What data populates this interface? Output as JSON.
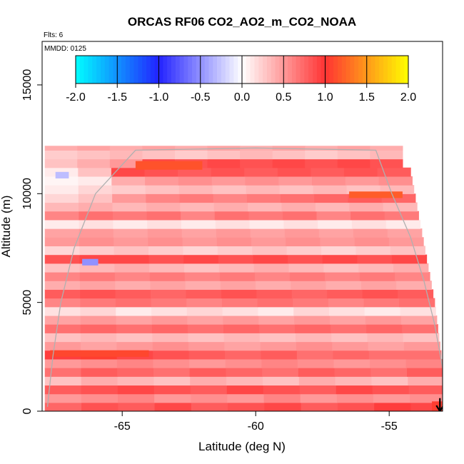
{
  "chart_data": {
    "type": "heatmap",
    "title": "ORCAS RF06 CO2_AO2_m_CO2_NOAA",
    "flts_note": "Flts: 6",
    "mmdd_note": "MMDD: 0125",
    "xlabel": "Latitude (deg N)",
    "ylabel": "Altitude (m)",
    "xlim": [
      -68.0,
      -53.0
    ],
    "ylim": [
      0,
      17000
    ],
    "x_ticks": [
      -65,
      -60,
      -55
    ],
    "x_tick_labels": [
      "-65",
      "-60",
      "-55"
    ],
    "y_ticks": [
      0,
      5000,
      10000,
      15000
    ],
    "y_tick_labels": [
      "0",
      "5000",
      "10000",
      "15000"
    ],
    "colorbar": {
      "range": [
        -2.0,
        2.0
      ],
      "ticks": [
        -2.0,
        -1.5,
        -1.0,
        -0.5,
        0.0,
        0.5,
        1.0,
        1.5,
        2.0
      ],
      "tick_labels": [
        "-2.0",
        "-1.5",
        "-1.0",
        "-0.5",
        "0.0",
        "0.5",
        "1.0",
        "1.5",
        "2.0"
      ],
      "stops": [
        {
          "v": -2.0,
          "c": "#00ffff"
        },
        {
          "v": -1.0,
          "c": "#2222ff"
        },
        {
          "v": 0.0,
          "c": "#ffffff"
        },
        {
          "v": 1.0,
          "c": "#ff3333"
        },
        {
          "v": 2.0,
          "c": "#ffff00"
        }
      ]
    },
    "bands": [
      {
        "alt_min": 0,
        "alt_max": 400,
        "values": [
          0.75,
          0.85,
          0.8,
          0.9,
          0.8,
          0.85,
          0.9,
          0.8,
          0.85,
          0.95,
          0.9
        ]
      },
      {
        "alt_min": 400,
        "alt_max": 800,
        "values": [
          0.5,
          0.55,
          0.6,
          0.5,
          0.55,
          0.5,
          0.6,
          0.5,
          0.55,
          0.5,
          0.55
        ]
      },
      {
        "alt_min": 800,
        "alt_max": 1200,
        "values": [
          0.8,
          0.85,
          0.9,
          0.85,
          0.8,
          0.9,
          0.85,
          0.8,
          0.9,
          0.85,
          0.8
        ]
      },
      {
        "alt_min": 1200,
        "alt_max": 1600,
        "values": [
          0.3,
          0.4,
          0.35,
          0.3,
          0.4,
          0.35,
          0.3,
          0.4,
          0.35,
          0.3,
          0.4
        ]
      },
      {
        "alt_min": 1600,
        "alt_max": 2000,
        "values": [
          0.7,
          0.8,
          0.75,
          0.7,
          0.8,
          0.75,
          0.7,
          0.8,
          0.75,
          0.7,
          0.8
        ]
      },
      {
        "alt_min": 2000,
        "alt_max": 2400,
        "values": [
          0.5,
          0.55,
          0.6,
          0.55,
          0.5,
          0.55,
          0.6,
          0.55,
          0.5,
          0.55,
          0.6
        ]
      },
      {
        "alt_min": 2400,
        "alt_max": 2800,
        "values": [
          0.95,
          1.05,
          0.9,
          0.85,
          0.8,
          0.75,
          0.8,
          0.7,
          0.75,
          0.7,
          0.7
        ]
      },
      {
        "alt_min": 2800,
        "alt_max": 3200,
        "values": [
          0.5,
          0.45,
          0.5,
          0.55,
          0.5,
          0.45,
          0.5,
          0.55,
          0.5,
          0.45,
          0.5
        ]
      },
      {
        "alt_min": 3200,
        "alt_max": 3600,
        "values": [
          0.3,
          0.35,
          0.3,
          0.35,
          0.3,
          0.35,
          0.3,
          0.35,
          0.3,
          0.35,
          0.3
        ]
      },
      {
        "alt_min": 3600,
        "alt_max": 4000,
        "values": [
          0.7,
          0.75,
          0.7,
          0.75,
          0.7,
          0.75,
          0.7,
          0.75,
          0.7,
          0.75,
          0.7
        ]
      },
      {
        "alt_min": 4000,
        "alt_max": 4400,
        "values": [
          0.45,
          0.5,
          0.45,
          0.5,
          0.45,
          0.5,
          0.45,
          0.5,
          0.45,
          0.5,
          0.45
        ]
      },
      {
        "alt_min": 4400,
        "alt_max": 4800,
        "values": [
          0.15,
          0.2,
          0.1,
          0.15,
          0.2,
          0.15,
          0.1,
          0.2,
          0.15,
          0.1,
          0.15
        ]
      },
      {
        "alt_min": 4800,
        "alt_max": 5200,
        "values": [
          0.6,
          0.65,
          0.7,
          0.65,
          0.6,
          0.65,
          0.7,
          0.65,
          0.6,
          0.65,
          0.7
        ]
      },
      {
        "alt_min": 5200,
        "alt_max": 5600,
        "values": [
          0.8,
          0.85,
          0.8,
          0.75,
          0.8,
          0.85,
          0.8,
          0.75,
          0.8,
          0.85,
          0.8
        ]
      },
      {
        "alt_min": 5600,
        "alt_max": 6000,
        "values": [
          0.4,
          0.45,
          0.4,
          0.45,
          0.4,
          0.45,
          0.4,
          0.45,
          0.4,
          0.45,
          0.4
        ]
      },
      {
        "alt_min": 6000,
        "alt_max": 6400,
        "values": [
          0.6,
          0.65,
          0.6,
          0.65,
          0.6,
          0.65,
          0.6,
          0.65,
          0.6,
          0.65,
          0.6
        ]
      },
      {
        "alt_min": 6400,
        "alt_max": 6800,
        "values": [
          0.3,
          0.35,
          0.4,
          0.35,
          0.3,
          0.35,
          0.4,
          0.35,
          0.3,
          0.35,
          0.4
        ]
      },
      {
        "alt_min": 6800,
        "alt_max": 7200,
        "values": [
          0.85,
          0.9,
          0.9,
          0.85,
          0.9,
          0.85,
          0.9,
          0.85,
          0.9,
          0.85,
          0.9
        ]
      },
      {
        "alt_min": 7200,
        "alt_max": 7600,
        "values": [
          0.2,
          0.25,
          0.3,
          0.25,
          0.2,
          0.25,
          0.3,
          0.25,
          0.2,
          0.25,
          0.3
        ]
      },
      {
        "alt_min": 7600,
        "alt_max": 8000,
        "values": [
          0.5,
          0.55,
          0.5,
          0.55,
          0.5,
          0.55,
          0.5,
          0.55,
          0.5,
          0.55,
          0.5
        ]
      },
      {
        "alt_min": 8000,
        "alt_max": 8400,
        "values": [
          0.45,
          0.5,
          0.45,
          0.5,
          0.45,
          0.5,
          0.45,
          0.5,
          0.45,
          0.5,
          0.45
        ]
      },
      {
        "alt_min": 8400,
        "alt_max": 8800,
        "values": [
          0.1,
          0.15,
          0.1,
          0.15,
          0.1,
          0.15,
          0.1,
          0.15,
          0.1,
          0.15,
          0.1
        ]
      },
      {
        "alt_min": 8800,
        "alt_max": 9200,
        "values": [
          0.6,
          0.7,
          0.65,
          0.7,
          0.6,
          0.7,
          0.65,
          0.7,
          0.6,
          0.7,
          0.65
        ]
      },
      {
        "alt_min": 9200,
        "alt_max": 9600,
        "values": [
          0.35,
          0.4,
          0.35,
          0.4,
          0.35,
          0.4,
          0.35,
          0.4,
          0.35,
          0.4,
          0.35
        ]
      },
      {
        "alt_min": 9600,
        "alt_max": 10000,
        "values": [
          0.2,
          0.3,
          0.5,
          0.6,
          0.65,
          0.6,
          0.65,
          0.7,
          0.75,
          0.8,
          0.75
        ]
      },
      {
        "alt_min": 10000,
        "alt_max": 10400,
        "values": [
          0.1,
          0.2,
          0.25,
          0.3,
          0.35,
          0.3,
          0.35,
          0.3,
          0.35,
          0.3,
          0.35
        ]
      },
      {
        "alt_min": 10400,
        "alt_max": 10800,
        "values": [
          0.05,
          0.1,
          0.4,
          0.5,
          0.55,
          0.5,
          0.55,
          0.5,
          0.55,
          0.5,
          0.55
        ]
      },
      {
        "alt_min": 10800,
        "alt_max": 11200,
        "values": [
          0.1,
          0.3,
          0.9,
          0.85,
          0.8,
          0.85,
          0.8,
          0.85,
          0.8,
          0.85,
          0.8
        ]
      },
      {
        "alt_min": 11200,
        "alt_max": 11600,
        "values": [
          0.3,
          0.4,
          0.5,
          0.9,
          0.85,
          0.9,
          0.85,
          0.9,
          0.85,
          0.9,
          0.85
        ]
      },
      {
        "alt_min": 11600,
        "alt_max": 12000,
        "values": [
          0.25,
          0.3,
          0.35,
          0.3,
          0.25,
          0.3,
          0.35,
          0.3,
          0.25,
          0.3,
          0.35
        ]
      },
      {
        "alt_min": 12000,
        "alt_max": 12200,
        "values": [
          0.4,
          0.45,
          0.4,
          0.45,
          0.4,
          0.45,
          0.4,
          0.45,
          0.4,
          0.45,
          0.4
        ]
      }
    ],
    "anomalies": [
      {
        "lat_min": -67.5,
        "lat_max": -67.0,
        "alt_min": 10700,
        "alt_max": 11000,
        "value": -0.3
      },
      {
        "lat_min": -66.5,
        "lat_max": -65.9,
        "alt_min": 6700,
        "alt_max": 7000,
        "value": -0.5
      },
      {
        "lat_min": -64.5,
        "lat_max": -62.0,
        "alt_min": 11100,
        "alt_max": 11500,
        "value": 1.15
      },
      {
        "lat_min": -56.5,
        "lat_max": -54.5,
        "alt_min": 9800,
        "alt_max": 10100,
        "value": 1.2
      },
      {
        "lat_min": -67.7,
        "lat_max": -64.0,
        "alt_min": 2500,
        "alt_max": 2800,
        "value": 1.1
      },
      {
        "lat_min": -53.4,
        "lat_max": -53.0,
        "alt_min": 0,
        "alt_max": 450,
        "value": 1.05
      }
    ],
    "coverage_envelope": [
      [
        -67.9,
        0
      ],
      [
        -67.9,
        12300
      ],
      [
        -54.5,
        12300
      ],
      [
        -54.2,
        11000
      ],
      [
        -53.9,
        9000
      ],
      [
        -53.6,
        7000
      ],
      [
        -53.3,
        5000
      ],
      [
        -53.1,
        3000
      ],
      [
        -52.9,
        1000
      ],
      [
        -52.8,
        0
      ]
    ],
    "flight_track": [
      [
        -67.8,
        200
      ],
      [
        -67.6,
        2500
      ],
      [
        -67.3,
        5000
      ],
      [
        -66.8,
        7500
      ],
      [
        -66.0,
        10000
      ],
      [
        -64.5,
        12000
      ],
      [
        -60.0,
        12100
      ],
      [
        -55.5,
        12000
      ],
      [
        -54.9,
        10000
      ],
      [
        -54.2,
        8000
      ],
      [
        -53.7,
        6000
      ],
      [
        -53.3,
        4000
      ],
      [
        -53.0,
        2000
      ],
      [
        -53.0,
        0
      ]
    ],
    "end_arrow": {
      "lat": -53.1,
      "alt_from": 600,
      "alt_to": 0
    }
  }
}
